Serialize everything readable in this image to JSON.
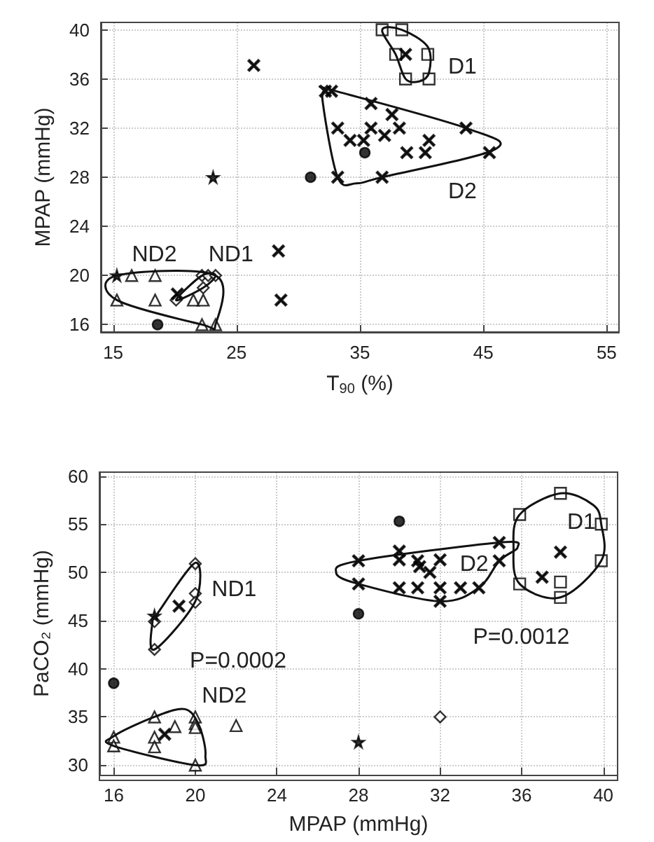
{
  "chart_data": [
    {
      "type": "scatter",
      "xlabel": "T$_{90}$ (%)",
      "ylabel": "MPAP (mmHg)",
      "xlim": [
        14,
        56
      ],
      "xticks": [
        15,
        25,
        35,
        45,
        55
      ],
      "ylim": [
        15.4,
        40.6
      ],
      "yticks": [
        16,
        20,
        24,
        28,
        32,
        36,
        40
      ],
      "grid": true,
      "annotations": [
        "D1",
        "D2",
        "ND2",
        "ND1"
      ],
      "series": [
        {
          "color": "#000000",
          "marker": "square",
          "x": [
            36.8,
            38.4,
            37.9,
            40.5,
            38.7,
            40.6
          ],
          "values": [
            40,
            40,
            38,
            38,
            36,
            36
          ]
        },
        {
          "color": "#000000",
          "marker": "cross",
          "x": [
            32.2,
            32.7,
            35.9,
            37.6,
            33.2,
            35.9,
            38.2,
            34.2,
            35.3,
            40.6,
            38.8,
            40.3,
            43.6,
            45.5,
            33.2,
            36.8
          ],
          "values": [
            35,
            35,
            34,
            33.1,
            32,
            32,
            32,
            31,
            31,
            31,
            30,
            30,
            32,
            30,
            28,
            28
          ]
        },
        {
          "color": "#000000",
          "marker": "triangle",
          "x": [
            16.5,
            18.4,
            15.3,
            18.4,
            21.5,
            22.3,
            22.2,
            23.3
          ],
          "values": [
            20,
            20,
            18,
            18,
            18,
            18,
            16,
            16
          ]
        },
        {
          "color": "#000000",
          "marker": "diamond",
          "x": [
            22.2,
            22.7,
            23.3,
            22.3,
            20.1
          ],
          "values": [
            20,
            20,
            20,
            19,
            18
          ]
        },
        {
          "color": "#000000",
          "marker": "star",
          "x": [
            15.3,
            23.1
          ],
          "values": [
            20,
            28
          ]
        },
        {
          "color": "#000000",
          "marker": "cross",
          "x": [
            38.7,
            37.0,
            26.4,
            20.2,
            28.4,
            28.6
          ],
          "values": [
            38,
            31.4,
            37.1,
            18.5,
            22,
            18
          ]
        },
        {
          "color": "#000000",
          "marker": "circle",
          "x": [
            35.4,
            31.0,
            18.6
          ],
          "values": [
            30,
            28,
            16
          ]
        }
      ]
    },
    {
      "type": "scatter",
      "xlabel": "MPAP (mmHg)",
      "ylabel": "PaCO₂ (mmHg)",
      "xlim": [
        15.3,
        40.7
      ],
      "xticks": [
        16,
        20,
        24,
        28,
        32,
        36,
        40
      ],
      "ylim": [
        29,
        60.4
      ],
      "yticks": [
        30,
        35,
        40,
        45,
        50,
        55,
        60
      ],
      "grid": true,
      "annotations": [
        "ND1",
        "D2",
        "D1",
        "P=0.0012",
        "P=0.0002",
        "ND2"
      ],
      "series": [
        {
          "color": "#000000",
          "marker": "square",
          "x": [
            37.9,
            35.9,
            39.9,
            39.9,
            35.9,
            37.9,
            37.9
          ],
          "values": [
            58.2,
            56.0,
            55.0,
            51.2,
            48.8,
            47.4,
            49.0
          ]
        },
        {
          "color": "#000000",
          "marker": "cross",
          "x": [
            28,
            28,
            30,
            30,
            30.9,
            31.0,
            32,
            30,
            30.9,
            32,
            33,
            33.9,
            32,
            34.9,
            34.9
          ],
          "values": [
            51.2,
            48.8,
            52.2,
            51.3,
            51.2,
            50.6,
            51.3,
            48.4,
            48.4,
            48.4,
            48.4,
            48.4,
            47.0,
            53.1,
            51.2
          ]
        },
        {
          "color": "#000000",
          "marker": "triangle",
          "x": [
            16,
            16,
            18,
            18,
            18,
            19,
            20,
            20,
            20,
            20,
            22
          ],
          "values": [
            32.9,
            32.0,
            35,
            32.9,
            31.9,
            34,
            35,
            34.3,
            33.9,
            30,
            34.1
          ]
        },
        {
          "color": "#000000",
          "marker": "diamond",
          "x": [
            20,
            20,
            20,
            18,
            18,
            32
          ],
          "values": [
            50.9,
            47.8,
            46.9,
            44.9,
            42,
            35
          ]
        },
        {
          "color": "#000000",
          "marker": "star",
          "x": [
            18,
            28
          ],
          "values": [
            45.5,
            32.4
          ]
        },
        {
          "color": "#000000",
          "marker": "cross",
          "x": [
            37.9,
            37.0,
            31.5,
            19.2,
            18.5
          ],
          "values": [
            52.1,
            49.5,
            50,
            46.5,
            33.2
          ]
        },
        {
          "color": "#000000",
          "marker": "circle",
          "x": [
            30,
            28,
            16
          ],
          "values": [
            55.3,
            45.7,
            38.5
          ]
        }
      ]
    }
  ]
}
